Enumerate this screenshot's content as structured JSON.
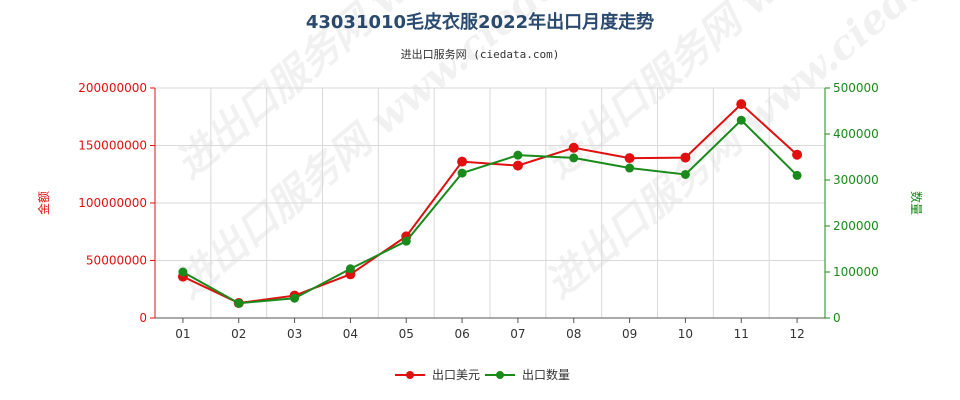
{
  "chart_data": {
    "type": "line",
    "title": "43031010毛皮衣服2022年出口月度走势",
    "subtitle": "进出口服务网 (ciedata.com)",
    "watermark": "进出口服务网 www.ciedata.com",
    "categories": [
      "01",
      "02",
      "03",
      "04",
      "05",
      "06",
      "07",
      "08",
      "09",
      "10",
      "11",
      "12"
    ],
    "y_left": {
      "label": "金额",
      "ylim": [
        0,
        200000000
      ],
      "ticks": [
        "0",
        "50000000",
        "100000000",
        "150000000",
        "200000000"
      ],
      "color": "#e01010"
    },
    "y_right": {
      "label": "数量",
      "ylim": [
        0,
        500000
      ],
      "ticks": [
        "0",
        "100000",
        "200000",
        "300000",
        "400000",
        "500000"
      ],
      "color": "#1a8a1a"
    },
    "series": [
      {
        "name": "出口美元",
        "axis": "left",
        "color": "#e01010",
        "values": [
          36000000,
          13000000,
          19500000,
          38000000,
          71000000,
          136000000,
          132500000,
          148000000,
          139000000,
          139500000,
          186000000,
          142000000
        ]
      },
      {
        "name": "出口数量",
        "axis": "right",
        "color": "#1a8a1a",
        "values": [
          100000,
          32000,
          43000,
          107000,
          167000,
          315000,
          354000,
          348000,
          326000,
          312000,
          430000,
          310000
        ]
      }
    ],
    "grid": true,
    "legend_position": "bottom"
  }
}
